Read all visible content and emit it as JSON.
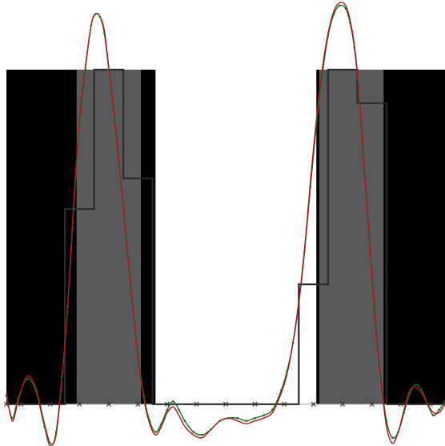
{
  "chart_data": {
    "type": "line",
    "title": "",
    "xlabel": "",
    "ylabel": "",
    "grid": false,
    "legend": "none",
    "xlim": [
      0,
      15
    ],
    "ylim": [
      -0.15,
      1.45
    ],
    "colors": {
      "signal_regions": "#000000",
      "highlight_bands": "#5a5a5a",
      "step": "#2a2a2a",
      "interp_green": "#1b6e1b",
      "interp_red": "#b11616",
      "samples": "#333333"
    },
    "signal_regions": [
      {
        "x0": 0.0,
        "x1": 5.1,
        "top": 1.2
      },
      {
        "x0": 10.6,
        "x1": 15.0,
        "top": 1.2
      }
    ],
    "highlight_bands": [
      {
        "x0": 2.4,
        "x1": 4.6
      },
      {
        "x0": 10.7,
        "x1": 12.9
      }
    ],
    "step_series": {
      "name": "",
      "x": [
        0,
        2.0,
        2.0,
        3.0,
        3.0,
        4.0,
        4.0,
        5.0,
        5.0,
        10.0,
        10.0,
        11.0,
        11.0,
        12.0,
        12.0,
        13.0,
        13.0,
        15.0
      ],
      "y": [
        0,
        0,
        0.7,
        0.7,
        1.2,
        1.2,
        0.81,
        0.81,
        0,
        0,
        0.43,
        0.43,
        1.2,
        1.2,
        1.08,
        1.08,
        0,
        0
      ]
    },
    "sample_points": [
      {
        "x": 0,
        "y": 0
      },
      {
        "x": 0.5,
        "y": 0
      },
      {
        "x": 1.5,
        "y": 0
      },
      {
        "x": 2.5,
        "y": 0
      },
      {
        "x": 3.5,
        "y": 0
      },
      {
        "x": 4.5,
        "y": 0
      },
      {
        "x": 5.5,
        "y": 0
      },
      {
        "x": 6.5,
        "y": 0
      },
      {
        "x": 7.5,
        "y": 0
      },
      {
        "x": 8.5,
        "y": 0
      },
      {
        "x": 9.5,
        "y": 0
      },
      {
        "x": 10.5,
        "y": 0
      },
      {
        "x": 11.5,
        "y": 0
      },
      {
        "x": 12.5,
        "y": 0
      },
      {
        "x": 13.5,
        "y": 0
      },
      {
        "x": 14.5,
        "y": 0
      }
    ],
    "series": [
      {
        "name": "",
        "color": "#1b6e1b",
        "x": [
          0,
          0.2,
          0.4,
          0.7,
          1.0,
          1.3,
          1.5,
          1.7,
          1.9,
          2.1,
          2.3,
          2.5,
          2.7,
          2.9,
          3.05,
          3.2,
          3.35,
          3.5,
          3.7,
          3.9,
          4.1,
          4.3,
          4.5,
          4.7,
          4.9,
          5.1,
          5.3,
          5.5,
          5.7,
          5.9,
          6.1,
          6.4,
          6.7,
          7.0,
          7.3,
          7.6,
          7.9,
          8.2,
          8.5,
          8.8,
          9.1,
          9.4,
          9.6,
          9.8,
          10.0,
          10.2,
          10.4,
          10.6,
          10.8,
          11.0,
          11.2,
          11.4,
          11.6,
          11.75,
          11.9,
          12.05,
          12.2,
          12.4,
          12.6,
          12.8,
          13.0,
          13.2,
          13.4,
          13.6,
          13.8,
          14.0,
          14.2,
          14.4,
          14.6,
          14.8,
          15.0
        ],
        "y": [
          0.03,
          -0.05,
          0.02,
          0.09,
          0.05,
          -0.08,
          -0.15,
          -0.1,
          0.1,
          0.35,
          0.7,
          1.0,
          1.2,
          1.36,
          1.4,
          1.39,
          1.33,
          1.2,
          1.02,
          0.82,
          0.6,
          0.38,
          0.18,
          0.03,
          -0.06,
          -0.1,
          -0.07,
          -0.02,
          0.01,
          -0.02,
          -0.06,
          -0.1,
          -0.11,
          -0.09,
          -0.06,
          -0.05,
          -0.05,
          -0.06,
          -0.05,
          -0.04,
          -0.02,
          0.05,
          0.12,
          0.22,
          0.36,
          0.55,
          0.78,
          1.0,
          1.18,
          1.32,
          1.4,
          1.43,
          1.42,
          1.37,
          1.28,
          1.12,
          0.9,
          0.62,
          0.33,
          0.1,
          -0.06,
          -0.12,
          -0.1,
          -0.03,
          0.04,
          0.07,
          0.05,
          0.0,
          -0.04,
          -0.02,
          0.01
        ]
      },
      {
        "name": "",
        "color": "#b11616",
        "x": [
          0,
          0.2,
          0.4,
          0.7,
          1.0,
          1.3,
          1.5,
          1.7,
          1.9,
          2.1,
          2.3,
          2.5,
          2.7,
          2.9,
          3.05,
          3.2,
          3.35,
          3.5,
          3.7,
          3.9,
          4.1,
          4.3,
          4.5,
          4.7,
          4.9,
          5.1,
          5.3,
          5.5,
          5.7,
          5.9,
          6.1,
          6.4,
          6.7,
          7.0,
          7.3,
          7.6,
          7.9,
          8.2,
          8.5,
          8.8,
          9.1,
          9.4,
          9.6,
          9.8,
          10.0,
          10.2,
          10.4,
          10.6,
          10.8,
          11.0,
          11.2,
          11.4,
          11.6,
          11.75,
          11.9,
          12.05,
          12.2,
          12.4,
          12.6,
          12.8,
          13.0,
          13.2,
          13.4,
          13.6,
          13.8,
          14.0,
          14.2,
          14.4,
          14.6,
          14.8,
          15.0
        ],
        "y": [
          0.04,
          -0.06,
          0.01,
          0.1,
          0.06,
          -0.07,
          -0.14,
          -0.11,
          0.09,
          0.36,
          0.72,
          1.02,
          1.21,
          1.36,
          1.4,
          1.39,
          1.34,
          1.21,
          1.03,
          0.82,
          0.59,
          0.37,
          0.17,
          0.02,
          -0.07,
          -0.11,
          -0.08,
          -0.03,
          -0.01,
          -0.04,
          -0.08,
          -0.11,
          -0.12,
          -0.09,
          -0.06,
          -0.05,
          -0.06,
          -0.07,
          -0.06,
          -0.05,
          -0.03,
          0.04,
          0.11,
          0.22,
          0.37,
          0.56,
          0.8,
          1.02,
          1.2,
          1.33,
          1.41,
          1.44,
          1.43,
          1.38,
          1.29,
          1.13,
          0.9,
          0.61,
          0.32,
          0.09,
          -0.08,
          -0.14,
          -0.1,
          -0.02,
          0.05,
          0.06,
          0.04,
          0.0,
          -0.03,
          -0.03,
          0.0
        ]
      }
    ]
  }
}
